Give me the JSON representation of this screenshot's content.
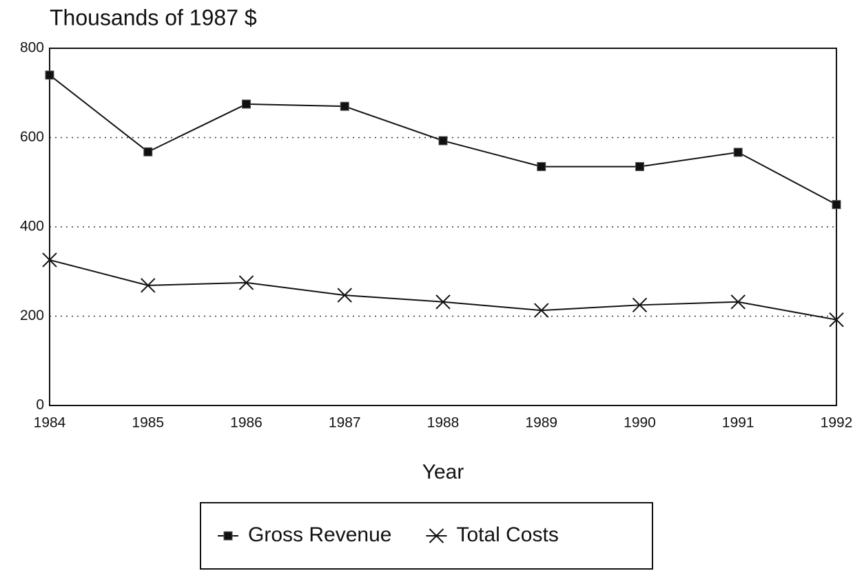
{
  "chart_data": {
    "type": "line",
    "title": "Thousands of 1987 $",
    "xlabel": "Year",
    "x": [
      1984,
      1985,
      1986,
      1987,
      1988,
      1989,
      1990,
      1991,
      1992
    ],
    "series": [
      {
        "name": "Gross Revenue",
        "color": "#111111",
        "marker": "square",
        "values": [
          740,
          568,
          675,
          670,
          593,
          535,
          535,
          567,
          450
        ]
      },
      {
        "name": "Total Costs",
        "color": "#111111",
        "marker": "x",
        "values": [
          326,
          269,
          275,
          247,
          232,
          213,
          225,
          232,
          192
        ]
      }
    ],
    "xlim": [
      1984,
      1992
    ],
    "xticks": [
      1984,
      1985,
      1986,
      1987,
      1988,
      1989,
      1990,
      1991,
      1992
    ],
    "ylim": [
      0,
      800
    ],
    "yticks": [
      0,
      200,
      400,
      600,
      800
    ],
    "grid": true,
    "legend": "bottom"
  }
}
